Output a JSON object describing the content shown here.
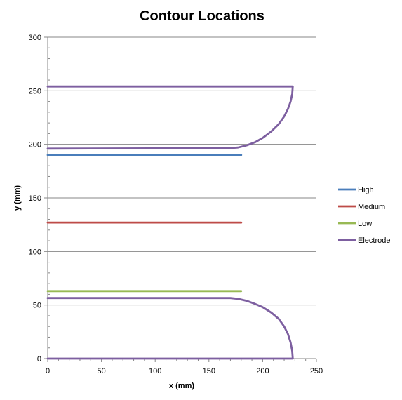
{
  "chart_data": {
    "type": "line",
    "title": "Contour Locations",
    "xlabel": "x (mm)",
    "ylabel": "y (mm)",
    "xlim": [
      0,
      250
    ],
    "ylim": [
      0,
      300
    ],
    "x_ticks": [
      0,
      50,
      100,
      150,
      200,
      250
    ],
    "y_ticks": [
      0,
      50,
      100,
      150,
      200,
      250,
      300
    ],
    "grid": "horizontal major",
    "legend_position": "right",
    "series": [
      {
        "name": "High",
        "color": "#4a7ebb",
        "points": [
          [
            0,
            190
          ],
          [
            180,
            190
          ]
        ]
      },
      {
        "name": "Medium",
        "color": "#be4b48",
        "points": [
          [
            0,
            127
          ],
          [
            180,
            127
          ]
        ]
      },
      {
        "name": "Low",
        "color": "#98b954",
        "points": [
          [
            0,
            63
          ],
          [
            180,
            63
          ]
        ]
      },
      {
        "name": "Electrode",
        "color": "#7d5fa0",
        "segments": [
          [
            [
              0,
              0
            ],
            [
              228,
              0
            ],
            [
              227.5,
              7
            ],
            [
              226,
              15
            ],
            [
              223.5,
              23
            ],
            [
              220,
              30
            ],
            [
              215,
              37
            ],
            [
              208,
              43
            ],
            [
              200,
              48
            ],
            [
              193,
              51
            ],
            [
              185,
              54
            ],
            [
              177,
              55.8
            ],
            [
              170,
              56.5
            ],
            [
              0,
              56.5
            ]
          ],
          [
            [
              0,
              196
            ],
            [
              170,
              196.5
            ],
            [
              177,
              197
            ],
            [
              185,
              199
            ],
            [
              193,
              202
            ],
            [
              200,
              206
            ],
            [
              208,
              212
            ],
            [
              215,
              219
            ],
            [
              220,
              226
            ],
            [
              223.5,
              233
            ],
            [
              226,
              240
            ],
            [
              227.5,
              247
            ],
            [
              228,
              254
            ],
            [
              0,
              254
            ]
          ]
        ]
      }
    ]
  }
}
